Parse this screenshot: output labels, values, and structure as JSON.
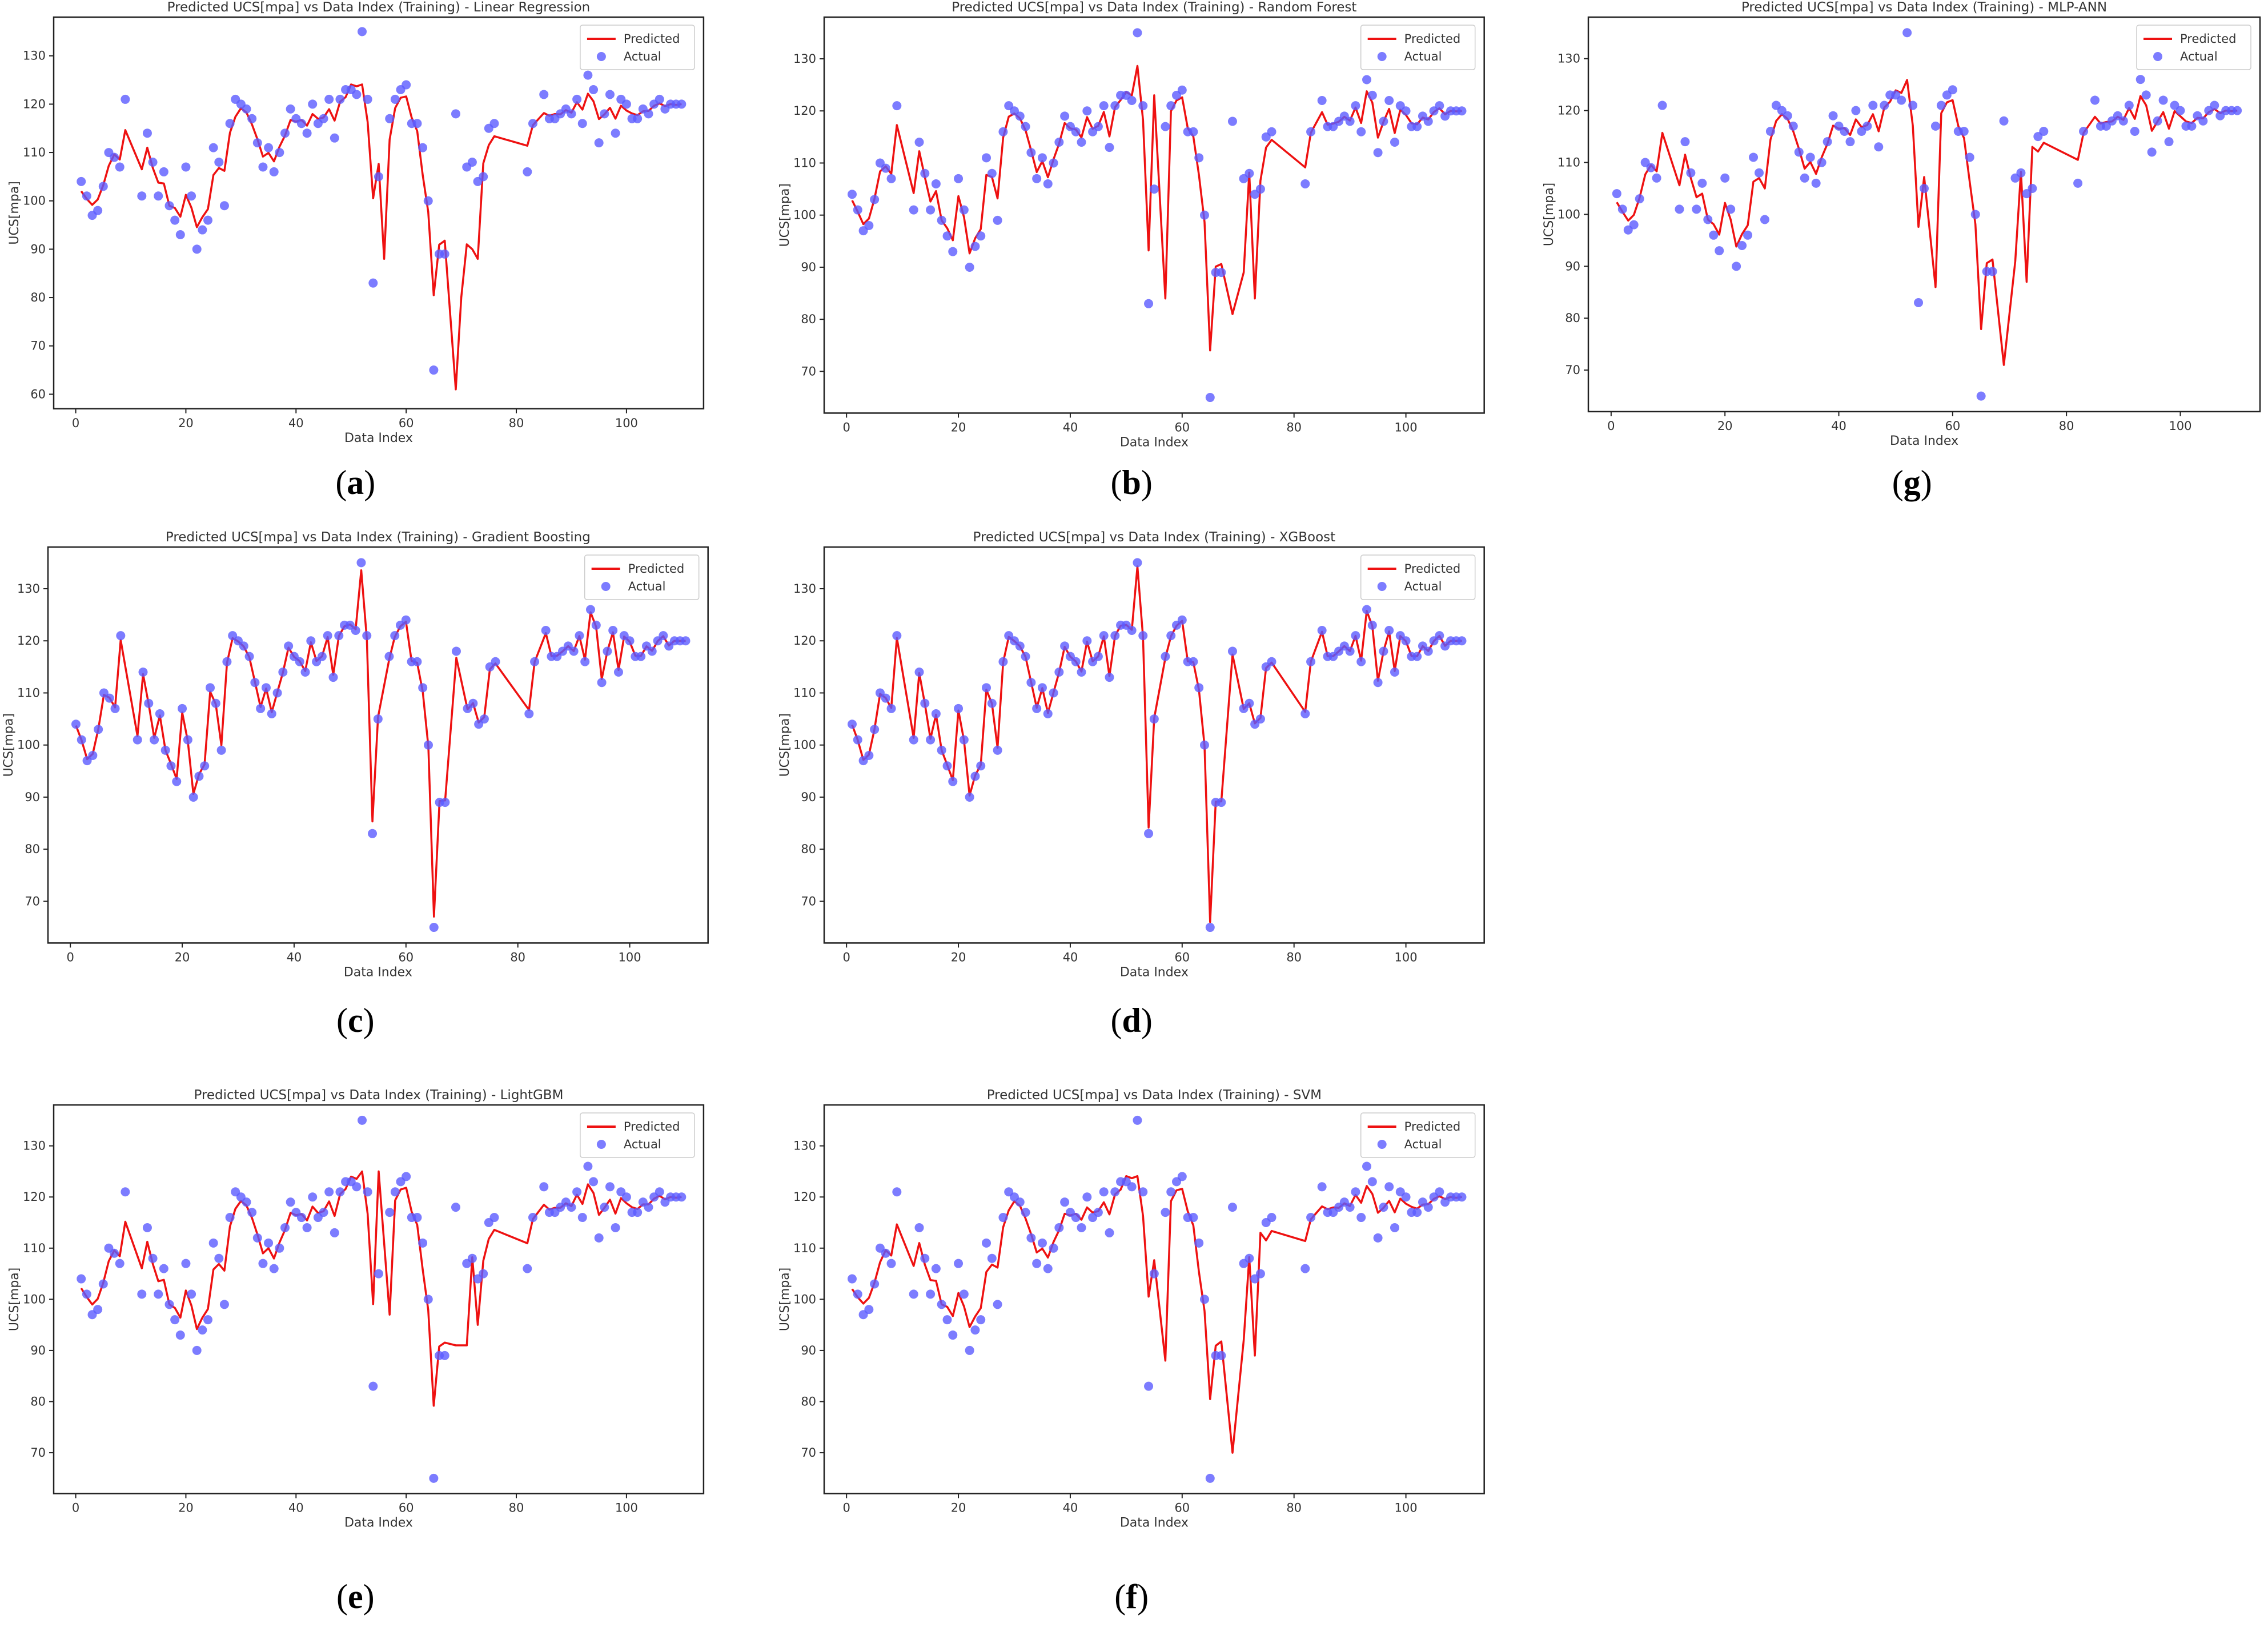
{
  "chart_data": [
    {
      "id": "a",
      "type": "line+scatter",
      "title": "Predicted UCS[mpa] vs Data Index (Training) - Linear Regression",
      "xlabel": "Data Index",
      "ylabel": "UCS[mpa]",
      "xlim": [
        -4,
        114
      ],
      "ylim": [
        57,
        138
      ],
      "xticks": [
        0,
        20,
        40,
        60,
        80,
        100
      ],
      "yticks": [
        60,
        70,
        80,
        90,
        100,
        110,
        120,
        130
      ],
      "legend": [
        "Predicted",
        "Actual"
      ],
      "caption_letter": "a",
      "predicted_offsets": {
        "amp": 0.6,
        "knots": [
          [
            56,
            88
          ],
          [
            69,
            61
          ],
          [
            70,
            80
          ],
          [
            71,
            91
          ],
          [
            72,
            90
          ],
          [
            73,
            88
          ]
        ]
      }
    },
    {
      "id": "b",
      "type": "line+scatter",
      "title": "Predicted UCS[mpa] vs Data Index (Training) - Random Forest",
      "xlabel": "Data Index",
      "ylabel": "UCS[mpa]",
      "xlim": [
        -4,
        114
      ],
      "ylim": [
        62,
        138
      ],
      "xticks": [
        0,
        20,
        40,
        60,
        80,
        100
      ],
      "yticks": [
        70,
        80,
        90,
        100,
        110,
        120,
        130
      ],
      "legend": [
        "Predicted",
        "Actual"
      ],
      "caption_letter": "b",
      "predicted_offsets": {
        "amp": 0.35,
        "knots": [
          [
            55,
            123
          ],
          [
            57,
            84
          ],
          [
            69,
            81
          ],
          [
            71,
            89
          ],
          [
            73,
            84
          ]
        ]
      }
    },
    {
      "id": "g",
      "type": "line+scatter",
      "title": "Predicted UCS[mpa] vs Data Index (Training) - MLP-ANN",
      "xlabel": "Data Index",
      "ylabel": "UCS[mpa]",
      "xlim": [
        -4,
        114
      ],
      "ylim": [
        62,
        138
      ],
      "xticks": [
        0,
        20,
        40,
        60,
        80,
        100
      ],
      "yticks": [
        70,
        80,
        90,
        100,
        110,
        120,
        130
      ],
      "legend": [
        "Predicted",
        "Actual"
      ],
      "caption_letter": "g",
      "predicted_offsets": {
        "amp": 0.5,
        "knots": [
          [
            57,
            86
          ],
          [
            69,
            71
          ],
          [
            71,
            91
          ],
          [
            73,
            87
          ],
          [
            74,
            113
          ]
        ]
      }
    },
    {
      "id": "c",
      "type": "line+scatter",
      "title": "Predicted UCS[mpa] vs Data Index (Training) - Gradient Boosting",
      "xlabel": "Data Index",
      "ylabel": "UCS[mpa]",
      "xlim": [
        -4,
        114
      ],
      "ylim": [
        62,
        138
      ],
      "xticks": [
        0,
        20,
        40,
        60,
        80,
        100
      ],
      "yticks": [
        70,
        80,
        90,
        100,
        110,
        120,
        130
      ],
      "legend": [
        "Predicted",
        "Actual"
      ],
      "caption_letter": "c",
      "predicted_offsets": {
        "amp": 0.08,
        "knots": []
      }
    },
    {
      "id": "d",
      "type": "line+scatter",
      "title": "Predicted UCS[mpa] vs Data Index (Training) - XGBoost",
      "xlabel": "Data Index",
      "ylabel": "UCS[mpa]",
      "xlim": [
        -4,
        114
      ],
      "ylim": [
        62,
        138
      ],
      "xticks": [
        0,
        20,
        40,
        60,
        80,
        100
      ],
      "yticks": [
        70,
        80,
        90,
        100,
        110,
        120,
        130
      ],
      "legend": [
        "Predicted",
        "Actual"
      ],
      "caption_letter": "d",
      "predicted_offsets": {
        "amp": 0.04,
        "knots": []
      }
    },
    {
      "id": "e",
      "type": "line+scatter",
      "title": "Predicted UCS[mpa] vs Data Index (Training) - LightGBM",
      "xlabel": "Data Index",
      "ylabel": "UCS[mpa]",
      "xlim": [
        -4,
        114
      ],
      "ylim": [
        62,
        138
      ],
      "xticks": [
        0,
        20,
        40,
        60,
        80,
        100
      ],
      "yticks": [
        70,
        80,
        90,
        100,
        110,
        120,
        130
      ],
      "legend": [
        "Predicted",
        "Actual"
      ],
      "caption_letter": "e",
      "predicted_offsets": {
        "amp": 0.55,
        "knots": [
          [
            55,
            125
          ],
          [
            57,
            97
          ],
          [
            69,
            91
          ],
          [
            71,
            91
          ],
          [
            73,
            95
          ]
        ]
      }
    },
    {
      "id": "f",
      "type": "line+scatter",
      "title": "Predicted UCS[mpa] vs Data Index (Training) - SVM",
      "xlabel": "Data Index",
      "ylabel": "UCS[mpa]",
      "xlim": [
        -4,
        114
      ],
      "ylim": [
        62,
        138
      ],
      "xticks": [
        0,
        20,
        40,
        60,
        80,
        100
      ],
      "yticks": [
        70,
        80,
        90,
        100,
        110,
        120,
        130
      ],
      "legend": [
        "Predicted",
        "Actual"
      ],
      "caption_letter": "f",
      "predicted_offsets": {
        "amp": 0.6,
        "knots": [
          [
            57,
            88
          ],
          [
            69,
            70
          ],
          [
            71,
            92
          ],
          [
            73,
            89
          ],
          [
            74,
            113
          ]
        ]
      }
    }
  ],
  "actual": {
    "x": [
      1,
      2,
      3,
      4,
      5,
      6,
      7,
      8,
      9,
      12,
      13,
      14,
      15,
      16,
      17,
      18,
      19,
      20,
      21,
      22,
      23,
      24,
      25,
      26,
      27,
      28,
      29,
      30,
      31,
      32,
      33,
      34,
      35,
      36,
      37,
      38,
      39,
      40,
      41,
      42,
      43,
      44,
      45,
      46,
      47,
      48,
      49,
      50,
      51,
      52,
      53,
      54,
      55,
      57,
      58,
      59,
      60,
      61,
      62,
      63,
      64,
      65,
      66,
      67,
      69,
      71,
      72,
      73,
      74,
      75,
      76,
      82,
      83,
      85,
      86,
      87,
      88,
      89,
      90,
      91,
      92,
      93,
      94,
      95,
      96,
      97,
      98,
      99,
      100,
      101,
      102,
      103,
      104,
      105,
      106,
      107,
      108,
      109,
      110
    ],
    "y": [
      104,
      101,
      97,
      98,
      103,
      110,
      109,
      107,
      121,
      101,
      114,
      108,
      101,
      106,
      99,
      96,
      93,
      107,
      101,
      90,
      94,
      96,
      111,
      108,
      99,
      116,
      121,
      120,
      119,
      117,
      112,
      107,
      111,
      106,
      110,
      114,
      119,
      117,
      116,
      114,
      120,
      116,
      117,
      121,
      113,
      121,
      123,
      123,
      122,
      135,
      121,
      83,
      105,
      117,
      121,
      123,
      124,
      116,
      116,
      111,
      100,
      65,
      89,
      89,
      118,
      107,
      108,
      104,
      105,
      115,
      116,
      106,
      116,
      122,
      117,
      117,
      118,
      119,
      118,
      121,
      116,
      126,
      123,
      112,
      118,
      122,
      114,
      121,
      120,
      117,
      117,
      119,
      118,
      120,
      121,
      119,
      120,
      120,
      120
    ]
  }
}
